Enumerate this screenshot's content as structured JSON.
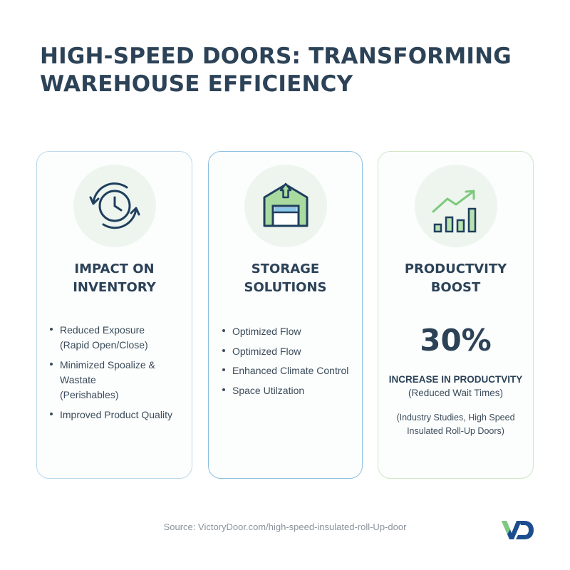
{
  "title": {
    "line1": "HIGH-SPEED DOORS: TRANSFORMING",
    "line2": "WAREHOUSE EFFICIENCY"
  },
  "cards": [
    {
      "icon": "clock-cycle-icon",
      "heading": {
        "line1": "IMPACT ON",
        "line2": "INVENTORY"
      },
      "bullets": [
        {
          "line1": "Reduced Exposure",
          "line2": "(Rapid Open/Close)"
        },
        {
          "line1": "Minimized Spoalize &",
          "line2": "Wastate",
          "line3": "(Perishables)"
        },
        {
          "line1": "Improved Product Quality"
        }
      ]
    },
    {
      "icon": "warehouse-door-icon",
      "heading": {
        "line1": "STORAGE",
        "line2": "SOLUTIONS"
      },
      "bullets": [
        "Optimized Flow",
        "Optimized Flow",
        "Enhanced Climate Control",
        "Space Utilzation"
      ]
    },
    {
      "icon": "growth-chart-icon",
      "heading": {
        "line1": "PRODUCTVITY",
        "line2": "BOOST"
      },
      "stat": "30%",
      "stat_label": "INCREASE IN PRODUCTVITY",
      "stat_sub": "(Reduced Wait Times)",
      "stat_note": {
        "line1": "(Industry Studies, High Speed",
        "line2": "Insulated Roll-Up Doors)"
      }
    }
  ],
  "source": "Source: VictoryDoor.com/high-speed-insulated-roll-Up-door",
  "logo_icon": "victorydoor-logo-icon",
  "colors": {
    "title": "#2c4257",
    "card1_border": "#b9d9ec",
    "card2_border": "#8fc0e0",
    "card3_border": "#cfe6c4",
    "icon_circle": "#eef5ef",
    "green_accent": "#7ec97e",
    "dark_blue": "#1f3f5e",
    "logo_blue": "#1c4e8f"
  }
}
